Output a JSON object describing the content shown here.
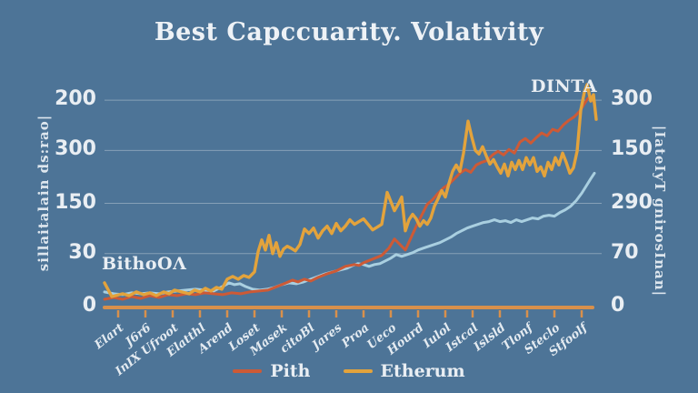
{
  "title": "Best Capccuarity. Volativity",
  "annotations": {
    "left_note": "BithoOΛ",
    "top_right_note": "DINTA"
  },
  "colors": {
    "background": "#4d7497",
    "title_text": "#eef2f6",
    "tick_text": "#e9eef3",
    "axis_line": "#d8904c",
    "gridline": "#ccd6df",
    "series_red": "#cd5a36",
    "series_gold": "#e3a33c",
    "series_blue": "#a9cfe0"
  },
  "chart_data": {
    "type": "line",
    "title": "Best Capccuarity. Volativity",
    "ylabel_left": "sillaitalain ds:rao|",
    "ylabel_right": "|IateIyT gnirosInan|",
    "grid": true,
    "legend_position": "bottom",
    "ylim": [
      0,
      260
    ],
    "y_ticks": [
      {
        "left": "0",
        "right": "0",
        "value": 0
      },
      {
        "left": "30",
        "right": "70",
        "value": 58
      },
      {
        "left": "150",
        "right": "290",
        "value": 113
      },
      {
        "left": "300",
        "right": "150",
        "value": 171
      },
      {
        "left": "200",
        "right": "300",
        "value": 226
      }
    ],
    "x_tick_labels": [
      "Elart",
      "J6r6",
      "InIX Ufroot",
      "Elatthl",
      "Arend",
      "Loset",
      "Masek",
      "citoBl",
      "Jares",
      "Proa",
      "Ueco",
      "Hourd",
      "Iulol",
      "Istcal",
      "Islsld",
      "Tlonf",
      "Steclo",
      "Stfoolf"
    ],
    "series": [
      {
        "name": "",
        "color": "#a9cfe0",
        "in_legend": false,
        "points": [
          [
            0,
            16
          ],
          [
            10,
            14
          ],
          [
            20,
            13
          ],
          [
            30,
            15
          ],
          [
            40,
            14
          ],
          [
            50,
            15
          ],
          [
            60,
            14
          ],
          [
            70,
            16
          ],
          [
            80,
            17
          ],
          [
            90,
            18
          ],
          [
            100,
            19
          ],
          [
            110,
            18
          ],
          [
            120,
            17
          ],
          [
            130,
            22
          ],
          [
            137,
            26
          ],
          [
            143,
            24
          ],
          [
            149,
            25
          ],
          [
            155,
            22
          ],
          [
            163,
            19
          ],
          [
            171,
            18
          ],
          [
            179,
            19
          ],
          [
            187,
            21
          ],
          [
            195,
            24
          ],
          [
            203,
            26
          ],
          [
            211,
            25
          ],
          [
            219,
            27
          ],
          [
            227,
            30
          ],
          [
            235,
            33
          ],
          [
            243,
            36
          ],
          [
            251,
            38
          ],
          [
            259,
            40
          ],
          [
            267,
            42
          ],
          [
            273,
            45
          ],
          [
            279,
            47
          ],
          [
            285,
            46
          ],
          [
            291,
            44
          ],
          [
            297,
            46
          ],
          [
            303,
            47
          ],
          [
            309,
            50
          ],
          [
            315,
            53
          ],
          [
            321,
            57
          ],
          [
            327,
            55
          ],
          [
            333,
            57
          ],
          [
            339,
            59
          ],
          [
            345,
            62
          ],
          [
            351,
            64
          ],
          [
            357,
            66
          ],
          [
            363,
            68
          ],
          [
            369,
            70
          ],
          [
            375,
            73
          ],
          [
            381,
            76
          ],
          [
            387,
            80
          ],
          [
            393,
            83
          ],
          [
            399,
            86
          ],
          [
            405,
            88
          ],
          [
            411,
            90
          ],
          [
            417,
            92
          ],
          [
            423,
            93
          ],
          [
            429,
            95
          ],
          [
            435,
            93
          ],
          [
            441,
            94
          ],
          [
            447,
            92
          ],
          [
            453,
            95
          ],
          [
            459,
            93
          ],
          [
            465,
            95
          ],
          [
            471,
            97
          ],
          [
            477,
            96
          ],
          [
            483,
            99
          ],
          [
            489,
            100
          ],
          [
            495,
            99
          ],
          [
            501,
            103
          ],
          [
            507,
            106
          ],
          [
            513,
            110
          ],
          [
            519,
            116
          ],
          [
            525,
            124
          ],
          [
            530,
            132
          ],
          [
            535,
            140
          ],
          [
            539,
            146
          ]
        ]
      },
      {
        "name": "Pith",
        "color": "#cd5a36",
        "in_legend": true,
        "points": [
          [
            0,
            8
          ],
          [
            10,
            10
          ],
          [
            20,
            8
          ],
          [
            30,
            11
          ],
          [
            40,
            9
          ],
          [
            50,
            12
          ],
          [
            60,
            10
          ],
          [
            70,
            13
          ],
          [
            80,
            12
          ],
          [
            90,
            14
          ],
          [
            100,
            13
          ],
          [
            110,
            15
          ],
          [
            120,
            14
          ],
          [
            130,
            13
          ],
          [
            140,
            15
          ],
          [
            150,
            14
          ],
          [
            160,
            16
          ],
          [
            170,
            17
          ],
          [
            180,
            18
          ],
          [
            190,
            22
          ],
          [
            200,
            26
          ],
          [
            207,
            29
          ],
          [
            213,
            27
          ],
          [
            220,
            30
          ],
          [
            227,
            28
          ],
          [
            235,
            32
          ],
          [
            245,
            36
          ],
          [
            255,
            39
          ],
          [
            265,
            44
          ],
          [
            275,
            46
          ],
          [
            280,
            45
          ],
          [
            285,
            48
          ],
          [
            295,
            52
          ],
          [
            305,
            56
          ],
          [
            313,
            64
          ],
          [
            319,
            74
          ],
          [
            325,
            68
          ],
          [
            331,
            62
          ],
          [
            337,
            75
          ],
          [
            343,
            88
          ],
          [
            349,
            100
          ],
          [
            355,
            112
          ],
          [
            361,
            117
          ],
          [
            367,
            124
          ],
          [
            373,
            130
          ],
          [
            379,
            134
          ],
          [
            385,
            140
          ],
          [
            391,
            146
          ],
          [
            397,
            150
          ],
          [
            403,
            147
          ],
          [
            409,
            155
          ],
          [
            415,
            158
          ],
          [
            421,
            160
          ],
          [
            427,
            166
          ],
          [
            433,
            170
          ],
          [
            439,
            166
          ],
          [
            445,
            172
          ],
          [
            451,
            168
          ],
          [
            457,
            180
          ],
          [
            463,
            184
          ],
          [
            469,
            179
          ],
          [
            475,
            185
          ],
          [
            481,
            190
          ],
          [
            487,
            187
          ],
          [
            493,
            194
          ],
          [
            499,
            192
          ],
          [
            505,
            199
          ],
          [
            511,
            204
          ],
          [
            517,
            208
          ],
          [
            523,
            214
          ],
          [
            528,
            222
          ],
          [
            532,
            228
          ],
          [
            536,
            230
          ],
          [
            539,
            222
          ],
          [
            541,
            207
          ]
        ]
      },
      {
        "name": "Etherum",
        "color": "#e3a33c",
        "in_legend": true,
        "points": [
          [
            0,
            26
          ],
          [
            8,
            11
          ],
          [
            20,
            14
          ],
          [
            27,
            12
          ],
          [
            35,
            16
          ],
          [
            43,
            13
          ],
          [
            50,
            15
          ],
          [
            57,
            12
          ],
          [
            65,
            16
          ],
          [
            71,
            14
          ],
          [
            77,
            18
          ],
          [
            85,
            16
          ],
          [
            93,
            14
          ],
          [
            99,
            18
          ],
          [
            105,
            16
          ],
          [
            111,
            20
          ],
          [
            117,
            17
          ],
          [
            123,
            21
          ],
          [
            129,
            19
          ],
          [
            135,
            30
          ],
          [
            141,
            33
          ],
          [
            147,
            30
          ],
          [
            153,
            34
          ],
          [
            159,
            32
          ],
          [
            165,
            38
          ],
          [
            169,
            60
          ],
          [
            173,
            73
          ],
          [
            177,
            62
          ],
          [
            181,
            78
          ],
          [
            185,
            58
          ],
          [
            189,
            70
          ],
          [
            193,
            55
          ],
          [
            197,
            63
          ],
          [
            201,
            66
          ],
          [
            205,
            64
          ],
          [
            210,
            61
          ],
          [
            215,
            68
          ],
          [
            220,
            85
          ],
          [
            225,
            80
          ],
          [
            230,
            86
          ],
          [
            235,
            75
          ],
          [
            240,
            83
          ],
          [
            245,
            88
          ],
          [
            250,
            80
          ],
          [
            255,
            91
          ],
          [
            260,
            83
          ],
          [
            265,
            88
          ],
          [
            270,
            95
          ],
          [
            275,
            90
          ],
          [
            280,
            93
          ],
          [
            285,
            96
          ],
          [
            290,
            90
          ],
          [
            295,
            84
          ],
          [
            300,
            87
          ],
          [
            305,
            90
          ],
          [
            311,
            125
          ],
          [
            315,
            115
          ],
          [
            319,
            105
          ],
          [
            323,
            112
          ],
          [
            327,
            120
          ],
          [
            331,
            83
          ],
          [
            335,
            95
          ],
          [
            339,
            101
          ],
          [
            343,
            96
          ],
          [
            347,
            88
          ],
          [
            351,
            94
          ],
          [
            355,
            90
          ],
          [
            359,
            97
          ],
          [
            363,
            110
          ],
          [
            367,
            118
          ],
          [
            371,
            127
          ],
          [
            375,
            120
          ],
          [
            379,
            135
          ],
          [
            383,
            148
          ],
          [
            387,
            155
          ],
          [
            391,
            148
          ],
          [
            395,
            168
          ],
          [
            400,
            203
          ],
          [
            404,
            186
          ],
          [
            408,
            171
          ],
          [
            412,
            167
          ],
          [
            416,
            175
          ],
          [
            420,
            165
          ],
          [
            424,
            156
          ],
          [
            428,
            161
          ],
          [
            432,
            153
          ],
          [
            436,
            146
          ],
          [
            440,
            156
          ],
          [
            444,
            143
          ],
          [
            448,
            158
          ],
          [
            452,
            150
          ],
          [
            456,
            160
          ],
          [
            460,
            150
          ],
          [
            464,
            163
          ],
          [
            468,
            155
          ],
          [
            472,
            163
          ],
          [
            476,
            148
          ],
          [
            480,
            153
          ],
          [
            484,
            143
          ],
          [
            488,
            158
          ],
          [
            492,
            150
          ],
          [
            496,
            163
          ],
          [
            500,
            155
          ],
          [
            504,
            168
          ],
          [
            508,
            158
          ],
          [
            512,
            146
          ],
          [
            516,
            152
          ],
          [
            520,
            170
          ],
          [
            524,
            215
          ],
          [
            528,
            235
          ],
          [
            531,
            243
          ],
          [
            535,
            225
          ],
          [
            538,
            232
          ],
          [
            541,
            205
          ]
        ]
      }
    ]
  }
}
